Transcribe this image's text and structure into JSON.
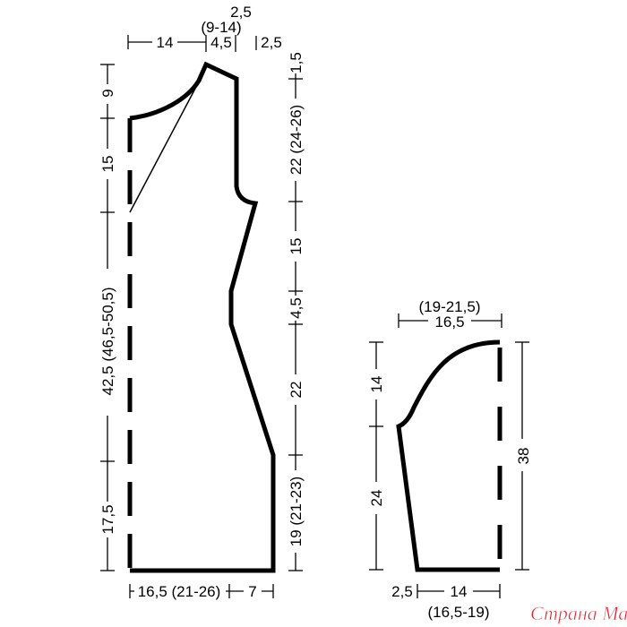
{
  "body_piece": {
    "top": {
      "shoulder_left": "14",
      "neck_inner": "4,5",
      "neck_range": "(9-14)",
      "neck_top": "2,5",
      "shoulder_right": "2,5"
    },
    "left": {
      "neck_depth": "9",
      "upper": "15",
      "length": "42,5 (46,5-50,5)",
      "bottom": "17,5"
    },
    "right": {
      "shoulder_slope": "1,5",
      "armhole": "22 (24-26)",
      "upper_side": "15",
      "waist": "4,5",
      "lower_side": "22",
      "hem_side": "19 (21-23)"
    },
    "bottom": {
      "width": "16,5 (21-26)",
      "extra": "7"
    }
  },
  "sleeve_piece": {
    "top": {
      "width": "16,5",
      "range": "(19-21,5)"
    },
    "left": {
      "cap": "14",
      "lower": "24"
    },
    "right": {
      "length": "38"
    },
    "bottom": {
      "offset": "2,5",
      "width": "14",
      "range": "(16,5-19)"
    }
  },
  "watermark": "Страна Мам"
}
